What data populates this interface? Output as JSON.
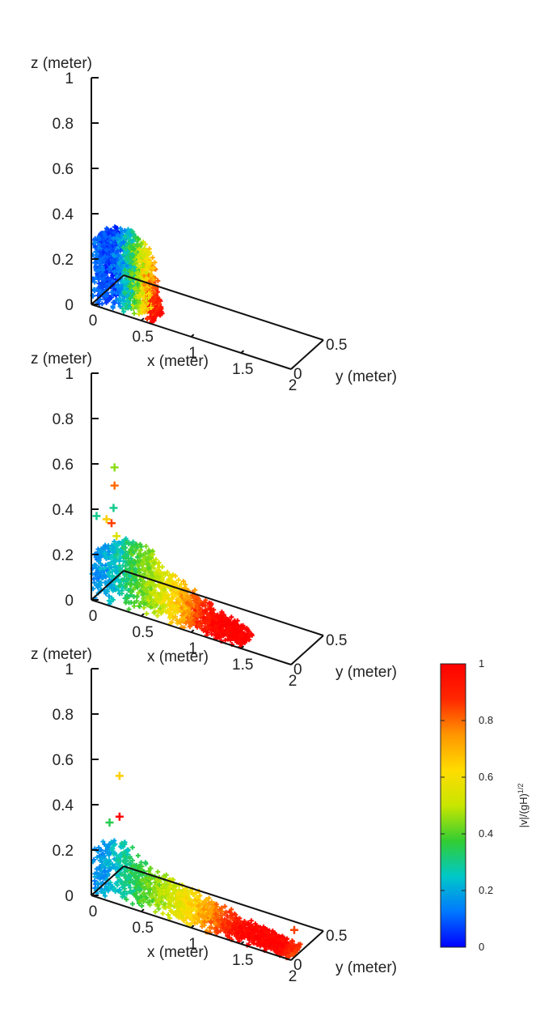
{
  "chart_data": [
    {
      "type": "scatter",
      "subtype": "3d-particle-snapshot",
      "panel": 1,
      "xlabel": "x (meter)",
      "ylabel": "y (meter)",
      "zlabel": "z (meter)",
      "x_ticks": [
        "0",
        "0.5",
        "1",
        "1.5",
        "2"
      ],
      "y_ticks": [
        "0",
        "0.5"
      ],
      "z_ticks": [
        "0",
        "0.2",
        "0.4",
        "0.6",
        "0.8",
        "1"
      ],
      "xlim": [
        0,
        2
      ],
      "ylim": [
        0,
        0.5
      ],
      "zlim": [
        0,
        1
      ],
      "grid": false,
      "free_surface_profile": {
        "x": [
          0,
          0.1,
          0.2,
          0.3,
          0.4,
          0.5,
          0.55,
          0.6
        ],
        "z": [
          0.3,
          0.32,
          0.33,
          0.33,
          0.31,
          0.29,
          0.18,
          0.0
        ]
      },
      "velocity_profile": {
        "x": [
          0,
          0.15,
          0.3,
          0.4,
          0.5,
          0.6
        ],
        "v": [
          0.12,
          0.05,
          0.25,
          0.45,
          0.65,
          1.0
        ]
      },
      "splash_particles": []
    },
    {
      "type": "scatter",
      "subtype": "3d-particle-snapshot",
      "panel": 2,
      "xlabel": "x (meter)",
      "ylabel": "y (meter)",
      "zlabel": "z (meter)",
      "x_ticks": [
        "0",
        "0.5",
        "1",
        "1.5",
        "2"
      ],
      "y_ticks": [
        "0",
        "0.5"
      ],
      "z_ticks": [
        "0",
        "0.2",
        "0.4",
        "0.6",
        "0.8",
        "1"
      ],
      "xlim": [
        0,
        2
      ],
      "ylim": [
        0,
        0.5
      ],
      "zlim": [
        0,
        1
      ],
      "grid": false,
      "free_surface_profile": {
        "x": [
          0,
          0.15,
          0.3,
          0.45,
          0.6,
          0.8,
          1.0,
          1.2,
          1.4,
          1.5
        ],
        "z": [
          0.2,
          0.25,
          0.28,
          0.26,
          0.22,
          0.17,
          0.12,
          0.08,
          0.06,
          0.02
        ]
      },
      "velocity_profile": {
        "x": [
          0,
          0.2,
          0.4,
          0.6,
          0.8,
          1.0,
          1.2,
          1.5
        ],
        "v": [
          0.15,
          0.25,
          0.4,
          0.5,
          0.65,
          0.85,
          1.0,
          1.0
        ]
      },
      "splash_particles": [
        {
          "x": 0.2,
          "z": 0.6,
          "v": 0.45
        },
        {
          "x": 0.2,
          "z": 0.52,
          "v": 0.8
        },
        {
          "x": 0.19,
          "z": 0.42,
          "v": 0.3
        },
        {
          "x": 0.12,
          "z": 0.36,
          "v": 0.65
        },
        {
          "x": 0.02,
          "z": 0.36,
          "v": 0.3
        },
        {
          "x": 0.17,
          "z": 0.35,
          "v": 0.85
        },
        {
          "x": 0.22,
          "z": 0.3,
          "v": 0.55
        }
      ]
    },
    {
      "type": "scatter",
      "subtype": "3d-particle-snapshot",
      "panel": 3,
      "xlabel": "x (meter)",
      "ylabel": "y (meter)",
      "zlabel": "z (meter)",
      "x_ticks": [
        "0",
        "0.5",
        "1",
        "1.5",
        "2"
      ],
      "y_ticks": [
        "0",
        "0.5"
      ],
      "z_ticks": [
        "0",
        "0.2",
        "0.4",
        "0.6",
        "0.8",
        "1"
      ],
      "xlim": [
        0,
        2
      ],
      "ylim": [
        0,
        0.5
      ],
      "zlim": [
        0,
        1
      ],
      "grid": false,
      "free_surface_profile": {
        "x": [
          0,
          0.1,
          0.2,
          0.35,
          0.5,
          0.8,
          1.1,
          1.4,
          1.7,
          2.0
        ],
        "z": [
          0.2,
          0.22,
          0.25,
          0.2,
          0.16,
          0.13,
          0.1,
          0.07,
          0.05,
          0.03
        ]
      },
      "velocity_profile": {
        "x": [
          0,
          0.3,
          0.6,
          0.9,
          1.2,
          1.5,
          1.8,
          2.0
        ],
        "v": [
          0.15,
          0.3,
          0.45,
          0.6,
          0.8,
          1.0,
          1.0,
          0.85
        ]
      },
      "splash_particles": [
        {
          "x": 0.25,
          "z": 0.55,
          "v": 0.65
        },
        {
          "x": 0.25,
          "z": 0.37,
          "v": 1.0
        },
        {
          "x": 0.15,
          "z": 0.33,
          "v": 0.35
        },
        {
          "x": 2.0,
          "z": 0.12,
          "v": 0.85
        }
      ]
    }
  ],
  "colorbar": {
    "label": "|v|/(gH)^{1/2}",
    "label_base": "|v|/(gH)",
    "label_exponent": "1/2",
    "ticks": [
      "0",
      "0.2",
      "0.4",
      "0.6",
      "0.8",
      "1"
    ],
    "range": [
      0,
      1
    ],
    "colormap_stops": [
      "#0000ff",
      "#0078ff",
      "#00c8c8",
      "#32cd32",
      "#c8e600",
      "#ffdc00",
      "#ff9600",
      "#ff2800",
      "#ff0000"
    ]
  }
}
